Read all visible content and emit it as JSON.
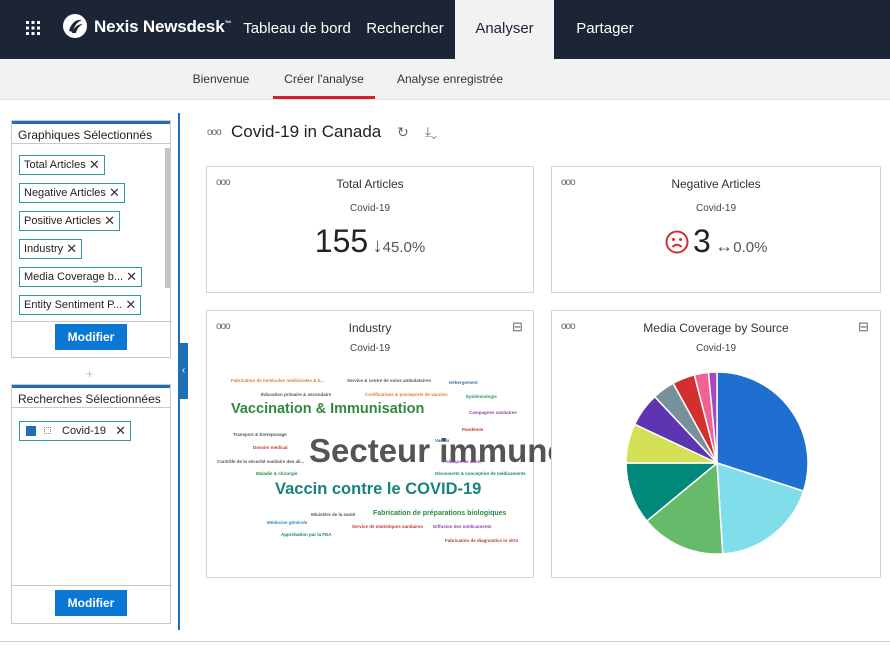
{
  "app": {
    "name": "Nexis Newsdesk",
    "tm": "™"
  },
  "nav": [
    {
      "label": "Tableau de bord"
    },
    {
      "label": "Rechercher"
    },
    {
      "label": "Analyser"
    },
    {
      "label": "Partager"
    }
  ],
  "subnav": [
    {
      "label": "Bienvenue"
    },
    {
      "label": "Créer l'analyse"
    },
    {
      "label": "Analyse enregistrée"
    }
  ],
  "sidebar": {
    "charts_title": "Graphiques Sélectionnés",
    "charts": [
      {
        "label": "Total Articles"
      },
      {
        "label": "Negative Articles"
      },
      {
        "label": "Positive Articles"
      },
      {
        "label": "Industry"
      },
      {
        "label": "Media Coverage b..."
      },
      {
        "label": "Entity Sentiment P..."
      }
    ],
    "charts_button": "Modifier",
    "searches_title": "Recherches Sélectionnées",
    "searches": [
      {
        "label": "Covid-19"
      }
    ],
    "searches_button": "Modifier",
    "remove_glyph": "✕",
    "plus": "+",
    "collapse_glyph": "‹"
  },
  "main": {
    "dots": "ooo",
    "title": "Covid-19 in Canada",
    "refresh_glyph": "↻",
    "download_glyph": "⤓⌄"
  },
  "cards": {
    "total": {
      "title": "Total Articles",
      "sub": "Covid-19",
      "value": "155",
      "arrow": "↓",
      "change": "45.0%"
    },
    "negative": {
      "title": "Negative Articles",
      "sub": "Covid-19",
      "value": "3",
      "arrow": "↔",
      "change": "0.0%"
    },
    "industry": {
      "title": "Industry",
      "sub": "Covid-19",
      "collapse": "⊟"
    },
    "media": {
      "title": "Media Coverage by Source",
      "sub": "Covid-19",
      "collapse": "⊟"
    }
  },
  "word_cloud": [
    {
      "text": "Fabrication de molécules médicinales & b...",
      "color": "#e07a2e"
    },
    {
      "text": "Service & centre de soins ambulatoires",
      "color": "#555555"
    },
    {
      "text": "Hébergement",
      "color": "#3a6fb5"
    },
    {
      "text": "Éducation primaire & secondaire",
      "color": "#555555"
    },
    {
      "text": "Certifications & passeports de vaccins",
      "color": "#e07a2e"
    },
    {
      "text": "Épidémiologie",
      "color": "#2e9a5a"
    },
    {
      "text": "Vaccination & Immunisation",
      "color": "#2e8b3e"
    },
    {
      "text": "Campagnes sanitaires",
      "color": "#8e44ad"
    },
    {
      "text": "Transport & Entreposage",
      "color": "#555555"
    },
    {
      "text": "Pandémie",
      "color": "#c0392b"
    },
    {
      "text": "Vaccin",
      "color": "#1f6fc5"
    },
    {
      "text": "Secteur immunologique",
      "color": "#555555"
    },
    {
      "text": "Dossier médical",
      "color": "#c0392b"
    },
    {
      "text": "Contrôle de la sécurité sanitaire des ali...",
      "color": "#555555"
    },
    {
      "text": "Politique de santé",
      "color": "#8e44ad"
    },
    {
      "text": "Maladie & chirurgie",
      "color": "#2e8b3e"
    },
    {
      "text": "Découverte & conception de médicaments",
      "color": "#16847a"
    },
    {
      "text": "Vaccin contre le COVID-19",
      "color": "#16847a"
    },
    {
      "text": "Ministère de la santé",
      "color": "#555555"
    },
    {
      "text": "Fabrication de préparations biologiques",
      "color": "#2e8b3e"
    },
    {
      "text": "Médecine générale",
      "color": "#2e86c1"
    },
    {
      "text": "Service de statistiques sanitaires",
      "color": "#c0392b"
    },
    {
      "text": "Diffusion des médicaments",
      "color": "#8e44ad"
    },
    {
      "text": "Approbation par la FDA",
      "color": "#16847a"
    },
    {
      "text": "Fabrication de diagnostics in vitro",
      "color": "#c0392b"
    }
  ],
  "chart_data": {
    "type": "pie",
    "title": "Media Coverage by Source",
    "subtitle": "Covid-19",
    "slices": [
      {
        "value": 30.0,
        "color": "#1f6fd0"
      },
      {
        "value": 19.0,
        "color": "#80deea"
      },
      {
        "value": 15.0,
        "color": "#66bb6a"
      },
      {
        "value": 11.0,
        "color": "#00897b"
      },
      {
        "value": 7.0,
        "color": "#d4e157"
      },
      {
        "value": 6.0,
        "color": "#5e35b1"
      },
      {
        "value": 4.0,
        "color": "#78909c"
      },
      {
        "value": 4.0,
        "color": "#d32f2f"
      },
      {
        "value": 2.5,
        "color": "#f06292"
      },
      {
        "value": 1.5,
        "color": "#ab47bc"
      }
    ]
  }
}
